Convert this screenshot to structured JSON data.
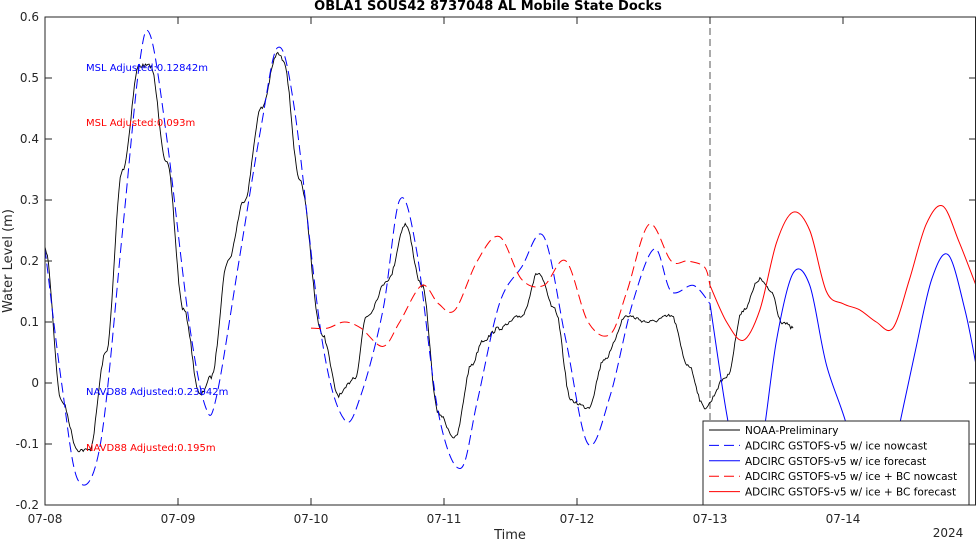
{
  "chart_data": {
    "type": "line",
    "title": "OBLA1 SOUS42 8737048 AL Mobile State Docks",
    "xlabel": "Time",
    "ylabel": "Water Level (m)",
    "xlim": [
      "2024-07-08 00:00",
      "2024-07-15 00:00"
    ],
    "ylim": [
      -0.2,
      0.6
    ],
    "x_ticks": [
      "07-08",
      "07-09",
      "07-10",
      "07-11",
      "07-12",
      "07-13",
      "07-14"
    ],
    "y_ticks": [
      -0.2,
      -0.1,
      0,
      0.1,
      0.2,
      0.3,
      0.4,
      0.5,
      0.6
    ],
    "year_label": "2024",
    "grid": false,
    "legend_position": "bottom-right",
    "forecast_start": "2024-07-13 00:00",
    "annotations": [
      {
        "text": "MSL Adjusted:0.12842m",
        "color": "#0000ff"
      },
      {
        "text": "MSL Adjusted:0.093m",
        "color": "#ff0000"
      },
      {
        "text": "NAVD88 Adjusted:0.23042m",
        "color": "#0000ff"
      },
      {
        "text": "NAVD88 Adjusted:0.195m",
        "color": "#ff0000"
      }
    ],
    "series": [
      {
        "name": "NOAA-Preliminary",
        "color": "#000000",
        "dash": "solid",
        "noisy": true,
        "x": [
          "2024-07-08 00:00",
          "2024-07-08 03:00",
          "2024-07-08 06:00",
          "2024-07-08 08:00",
          "2024-07-08 11:00",
          "2024-07-08 14:00",
          "2024-07-08 17:00",
          "2024-07-08 19:00",
          "2024-07-08 22:00",
          "2024-07-09 01:00",
          "2024-07-09 04:00",
          "2024-07-09 06:00",
          "2024-07-09 09:00",
          "2024-07-09 12:00",
          "2024-07-09 15:00",
          "2024-07-09 18:00",
          "2024-07-09 19:00",
          "2024-07-09 22:00",
          "2024-07-10 02:00",
          "2024-07-10 05:00",
          "2024-07-10 08:00",
          "2024-07-10 10:00",
          "2024-07-10 14:00",
          "2024-07-10 17:00",
          "2024-07-10 20:00",
          "2024-07-10 23:00",
          "2024-07-11 02:00",
          "2024-07-11 05:00",
          "2024-07-11 07:00",
          "2024-07-11 10:00",
          "2024-07-11 14:00",
          "2024-07-11 17:00",
          "2024-07-11 20:00",
          "2024-07-11 23:00",
          "2024-07-12 02:00",
          "2024-07-12 05:00",
          "2024-07-12 09:00",
          "2024-07-12 13:00",
          "2024-07-12 17:00",
          "2024-07-12 20:00",
          "2024-07-12 23:00",
          "2024-07-13 03:00",
          "2024-07-13 06:00",
          "2024-07-13 09:00",
          "2024-07-13 11:00",
          "2024-07-13 13:00",
          "2024-07-13 15:00"
        ],
        "y": [
          0.22,
          -0.03,
          -0.11,
          -0.11,
          0.05,
          0.35,
          0.52,
          0.52,
          0.36,
          0.12,
          -0.02,
          0.01,
          0.2,
          0.3,
          0.45,
          0.54,
          0.53,
          0.33,
          0.08,
          -0.02,
          0.01,
          0.11,
          0.17,
          0.26,
          0.16,
          -0.05,
          -0.09,
          0.03,
          0.07,
          0.09,
          0.11,
          0.18,
          0.12,
          -0.03,
          -0.04,
          0.04,
          0.11,
          0.1,
          0.11,
          0.03,
          -0.04,
          0.01,
          0.12,
          0.17,
          0.15,
          0.1,
          0.09
        ]
      },
      {
        "name": "ADCIRC GSTOFS-v5 w/ ice nowcast",
        "color": "#0000ff",
        "dash": "dashed",
        "x": [
          "2024-07-08 00:00",
          "2024-07-08 03:00",
          "2024-07-08 06:00",
          "2024-07-08 10:00",
          "2024-07-08 14:00",
          "2024-07-08 17:00",
          "2024-07-08 19:00",
          "2024-07-08 22:00",
          "2024-07-09 02:00",
          "2024-07-09 05:00",
          "2024-07-09 07:00",
          "2024-07-09 11:00",
          "2024-07-09 15:00",
          "2024-07-09 18:00",
          "2024-07-09 21:00",
          "2024-07-10 02:00",
          "2024-07-10 06:00",
          "2024-07-10 09:00",
          "2024-07-10 13:00",
          "2024-07-10 16:00",
          "2024-07-10 19:00",
          "2024-07-10 23:00",
          "2024-07-11 03:00",
          "2024-07-11 06:00",
          "2024-07-11 10:00",
          "2024-07-11 14:00",
          "2024-07-11 18:00",
          "2024-07-11 22:00",
          "2024-07-12 02:00",
          "2024-07-12 06:00",
          "2024-07-12 10:00",
          "2024-07-12 14:00",
          "2024-07-12 17:00",
          "2024-07-12 21:00",
          "2024-07-13 00:00"
        ],
        "y": [
          0.22,
          0.0,
          -0.16,
          -0.1,
          0.25,
          0.52,
          0.57,
          0.4,
          0.1,
          -0.04,
          -0.02,
          0.2,
          0.42,
          0.55,
          0.45,
          0.07,
          -0.06,
          -0.02,
          0.12,
          0.3,
          0.22,
          -0.05,
          -0.14,
          -0.03,
          0.13,
          0.19,
          0.24,
          0.07,
          -0.1,
          -0.02,
          0.13,
          0.22,
          0.15,
          0.16,
          0.13
        ]
      },
      {
        "name": "ADCIRC GSTOFS-v5 w/ ice forecast",
        "color": "#0000ff",
        "dash": "solid",
        "x": [
          "2024-07-13 00:00",
          "2024-07-13 03:00",
          "2024-07-13 06:00",
          "2024-07-13 09:00",
          "2024-07-13 12:00",
          "2024-07-13 15:00",
          "2024-07-13 18:00",
          "2024-07-13 21:00",
          "2024-07-14 01:00",
          "2024-07-14 04:00",
          "2024-07-14 06:00",
          "2024-07-14 09:00",
          "2024-07-14 13:00",
          "2024-07-14 16:00",
          "2024-07-14 19:00",
          "2024-07-14 22:00",
          "2024-07-15 00:00"
        ],
        "y": [
          0.13,
          -0.05,
          -0.18,
          -0.12,
          0.07,
          0.18,
          0.16,
          0.03,
          -0.08,
          -0.22,
          -0.25,
          -0.12,
          0.05,
          0.17,
          0.21,
          0.12,
          0.03
        ]
      },
      {
        "name": "ADCIRC GSTOFS-v5 w/ ice + BC nowcast",
        "color": "#ff0000",
        "dash": "dashed",
        "x": [
          "2024-07-10 00:00",
          "2024-07-10 03:00",
          "2024-07-10 06:00",
          "2024-07-10 09:00",
          "2024-07-10 13:00",
          "2024-07-10 16:00",
          "2024-07-10 20:00",
          "2024-07-10 23:00",
          "2024-07-11 02:00",
          "2024-07-11 06:00",
          "2024-07-11 10:00",
          "2024-07-11 14:00",
          "2024-07-11 18:00",
          "2024-07-11 22:00",
          "2024-07-12 02:00",
          "2024-07-12 06:00",
          "2024-07-12 09:00",
          "2024-07-12 13:00",
          "2024-07-12 17:00",
          "2024-07-12 20:00",
          "2024-07-12 23:00",
          "2024-07-13 00:00"
        ],
        "y": [
          0.09,
          0.09,
          0.1,
          0.09,
          0.06,
          0.1,
          0.16,
          0.13,
          0.12,
          0.2,
          0.24,
          0.17,
          0.16,
          0.2,
          0.1,
          0.08,
          0.15,
          0.26,
          0.2,
          0.2,
          0.19,
          0.16
        ]
      },
      {
        "name": "ADCIRC GSTOFS-v5 w/ ice + BC forecast",
        "color": "#ff0000",
        "dash": "solid",
        "x": [
          "2024-07-13 00:00",
          "2024-07-13 03:00",
          "2024-07-13 06:00",
          "2024-07-13 09:00",
          "2024-07-13 12:00",
          "2024-07-13 15:00",
          "2024-07-13 18:00",
          "2024-07-13 21:00",
          "2024-07-14 00:00",
          "2024-07-14 03:00",
          "2024-07-14 06:00",
          "2024-07-14 09:00",
          "2024-07-14 12:00",
          "2024-07-14 15:00",
          "2024-07-14 18:00",
          "2024-07-14 21:00",
          "2024-07-15 00:00"
        ],
        "y": [
          0.16,
          0.1,
          0.07,
          0.12,
          0.23,
          0.28,
          0.25,
          0.15,
          0.13,
          0.12,
          0.1,
          0.09,
          0.17,
          0.26,
          0.29,
          0.23,
          0.16
        ]
      }
    ]
  }
}
